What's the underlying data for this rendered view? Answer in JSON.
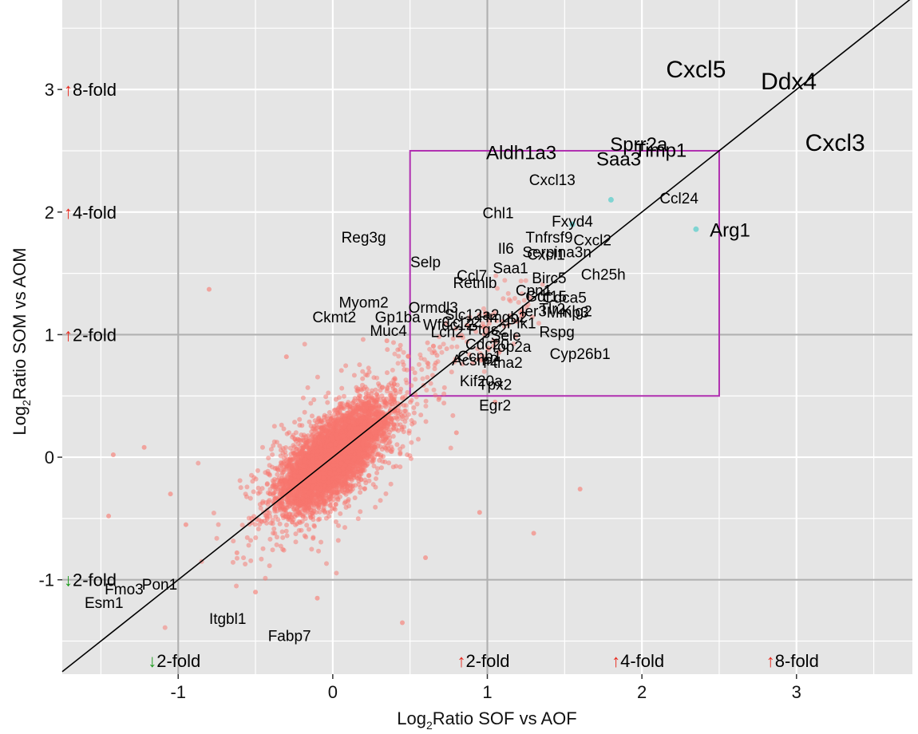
{
  "chart_data": {
    "type": "scatter",
    "title": "",
    "xlabel": {
      "prefix": "Log",
      "sub": "2",
      "suffix": "Ratio SOF vs AOF"
    },
    "ylabel": {
      "prefix": "Log",
      "sub": "2",
      "suffix": "Ratio SOM vs AOM"
    },
    "xlim": [
      -1.75,
      3.75
    ],
    "ylim": [
      -1.77,
      3.73
    ],
    "x_ticks": [
      -1,
      0,
      1,
      2,
      3
    ],
    "y_ticks": [
      -1,
      0,
      1,
      2,
      3
    ],
    "x_tick_labels": [
      "-1",
      "0",
      "1",
      "2",
      "3"
    ],
    "y_tick_labels": [
      "-1",
      "0",
      "1",
      "2",
      "3"
    ],
    "grid": true,
    "reference_line": {
      "slope": 1,
      "intercept": 0
    },
    "highlight_box": {
      "x": [
        0.5,
        2.5
      ],
      "y": [
        0.5,
        2.5
      ],
      "color": "#b02fb0"
    },
    "colors": {
      "background": "#e5e5e5",
      "grid_major": "#b0b0b0",
      "grid_minor": "#ffffff",
      "points": "#f8766d",
      "highlight_points": "#7fd4d2",
      "up_arrow": "#e8281c",
      "down_arrow": "#1a9a1a"
    },
    "fold_labels_y": [
      {
        "y": 3,
        "dir": "up",
        "text": "8-fold"
      },
      {
        "y": 2,
        "dir": "up",
        "text": "4-fold"
      },
      {
        "y": 1,
        "dir": "up",
        "text": "2-fold"
      },
      {
        "y": -1,
        "dir": "down",
        "text": "2-fold"
      }
    ],
    "fold_labels_x": [
      {
        "x": -1,
        "dir": "down",
        "text": "2-fold"
      },
      {
        "x": 1,
        "dir": "up",
        "text": "2-fold"
      },
      {
        "x": 2,
        "dir": "up",
        "text": "4-fold"
      },
      {
        "x": 3,
        "dir": "up",
        "text": "8-fold"
      }
    ],
    "gene_labels": [
      {
        "text": "Cxcl5",
        "x": 2.35,
        "y": 3.1,
        "size": "xl"
      },
      {
        "text": "Ddx4",
        "x": 2.95,
        "y": 3.0,
        "size": "xl"
      },
      {
        "text": "Cxcl3",
        "x": 3.25,
        "y": 2.5,
        "size": "xl"
      },
      {
        "text": "Aldh1a3",
        "x": 1.22,
        "y": 2.43,
        "size": "l"
      },
      {
        "text": "Saa3",
        "x": 1.85,
        "y": 2.38,
        "size": "l"
      },
      {
        "text": "Sprr2a",
        "x": 1.98,
        "y": 2.5,
        "size": "l"
      },
      {
        "text": "Timp1",
        "x": 2.12,
        "y": 2.45,
        "size": "l"
      },
      {
        "text": "Cxcl13",
        "x": 1.42,
        "y": 2.22,
        "size": "m"
      },
      {
        "text": "Ccl24",
        "x": 2.24,
        "y": 2.07,
        "size": "m"
      },
      {
        "text": "Chl1",
        "x": 1.07,
        "y": 1.95,
        "size": "m"
      },
      {
        "text": "Fxyd4",
        "x": 1.55,
        "y": 1.88,
        "size": "m"
      },
      {
        "text": "Arg1",
        "x": 2.57,
        "y": 1.8,
        "size": "l"
      },
      {
        "text": "Reg3g",
        "x": 0.2,
        "y": 1.75,
        "size": "m"
      },
      {
        "text": "Tnfrsf9",
        "x": 1.4,
        "y": 1.75,
        "size": "m"
      },
      {
        "text": "Cxcl2",
        "x": 1.68,
        "y": 1.73,
        "size": "m"
      },
      {
        "text": "Il6",
        "x": 1.12,
        "y": 1.66,
        "size": "m"
      },
      {
        "text": "Serpina3n",
        "x": 1.45,
        "y": 1.63,
        "size": "m"
      },
      {
        "text": "Cxcl1",
        "x": 1.38,
        "y": 1.61,
        "size": "m"
      },
      {
        "text": "Selp",
        "x": 0.6,
        "y": 1.55,
        "size": "m"
      },
      {
        "text": "Saa1",
        "x": 1.15,
        "y": 1.5,
        "size": "m"
      },
      {
        "text": "Birc5",
        "x": 1.4,
        "y": 1.42,
        "size": "m"
      },
      {
        "text": "Ch25h",
        "x": 1.75,
        "y": 1.45,
        "size": "m"
      },
      {
        "text": "Ccl7",
        "x": 0.9,
        "y": 1.44,
        "size": "m"
      },
      {
        "text": "Retnlb",
        "x": 0.92,
        "y": 1.38,
        "size": "m"
      },
      {
        "text": "Cpn1",
        "x": 1.3,
        "y": 1.32,
        "size": "m"
      },
      {
        "text": "Gdf15",
        "x": 1.38,
        "y": 1.27,
        "size": "m"
      },
      {
        "text": "Cdca5",
        "x": 1.5,
        "y": 1.26,
        "size": "m"
      },
      {
        "text": "Myom2",
        "x": 0.2,
        "y": 1.22,
        "size": "m"
      },
      {
        "text": "Ormdl3",
        "x": 0.65,
        "y": 1.18,
        "size": "m"
      },
      {
        "text": "Ier3",
        "x": 1.3,
        "y": 1.15,
        "size": "m"
      },
      {
        "text": "Tlr2",
        "x": 1.42,
        "y": 1.17,
        "size": "m"
      },
      {
        "text": "Mmp3",
        "x": 1.52,
        "y": 1.14,
        "size": "m"
      },
      {
        "text": "Slc12a2",
        "x": 0.9,
        "y": 1.12,
        "size": "m"
      },
      {
        "text": "Hmgb2",
        "x": 1.1,
        "y": 1.1,
        "size": "m"
      },
      {
        "text": "Klg2",
        "x": 1.58,
        "y": 1.15,
        "size": "m"
      },
      {
        "text": "Gp1ba",
        "x": 0.42,
        "y": 1.1,
        "size": "m"
      },
      {
        "text": "Ckmt2",
        "x": 0.01,
        "y": 1.1,
        "size": "m"
      },
      {
        "text": "Wfdc12",
        "x": 0.75,
        "y": 1.04,
        "size": "m"
      },
      {
        "text": "Ccl22",
        "x": 0.83,
        "y": 1.06,
        "size": "m"
      },
      {
        "text": "Plk1",
        "x": 1.22,
        "y": 1.05,
        "size": "m"
      },
      {
        "text": "Lcn2",
        "x": 0.74,
        "y": 0.98,
        "size": "m"
      },
      {
        "text": "Ptgs2",
        "x": 1.0,
        "y": 1.0,
        "size": "m"
      },
      {
        "text": "Muc4",
        "x": 0.36,
        "y": 0.99,
        "size": "m"
      },
      {
        "text": "Sele",
        "x": 1.12,
        "y": 0.95,
        "size": "m"
      },
      {
        "text": "Rspg",
        "x": 1.45,
        "y": 0.98,
        "size": "m"
      },
      {
        "text": "Cdc20",
        "x": 1.0,
        "y": 0.88,
        "size": "m"
      },
      {
        "text": "Top2a",
        "x": 1.15,
        "y": 0.86,
        "size": "m"
      },
      {
        "text": "Cyp26b1",
        "x": 1.6,
        "y": 0.8,
        "size": "m"
      },
      {
        "text": "Ccnb1",
        "x": 0.95,
        "y": 0.78,
        "size": "m"
      },
      {
        "text": "Acsm2",
        "x": 0.92,
        "y": 0.75,
        "size": "m"
      },
      {
        "text": "Ptha2",
        "x": 1.1,
        "y": 0.73,
        "size": "m"
      },
      {
        "text": "Kif20a",
        "x": 0.96,
        "y": 0.58,
        "size": "m"
      },
      {
        "text": "Tpx2",
        "x": 1.05,
        "y": 0.55,
        "size": "m"
      },
      {
        "text": "Egr2",
        "x": 1.05,
        "y": 0.38,
        "size": "m"
      },
      {
        "text": "Fmo3",
        "x": -1.35,
        "y": -1.12,
        "size": "m"
      },
      {
        "text": "Pon1",
        "x": -1.12,
        "y": -1.08,
        "size": "m"
      },
      {
        "text": "Esm1",
        "x": -1.48,
        "y": -1.23,
        "size": "m"
      },
      {
        "text": "Itgbl1",
        "x": -0.68,
        "y": -1.36,
        "size": "m"
      },
      {
        "text": "Fabp7",
        "x": -0.28,
        "y": -1.5,
        "size": "m"
      }
    ],
    "highlight_points": [
      {
        "x": 1.8,
        "y": 2.1
      },
      {
        "x": 2.35,
        "y": 1.86
      },
      {
        "x": 1.55,
        "y": 1.9
      }
    ],
    "cloud": {
      "n": 6000,
      "sd_x": 0.16,
      "sd_y": 0.2,
      "correlation": 0.7
    },
    "scattered_points": [
      {
        "x": -0.8,
        "y": 1.37
      },
      {
        "x": -1.42,
        "y": 0.02
      },
      {
        "x": -1.05,
        "y": -0.3
      },
      {
        "x": -1.45,
        "y": -0.48
      },
      {
        "x": -0.5,
        "y": -1.1
      },
      {
        "x": 1.6,
        "y": -0.26
      },
      {
        "x": 1.3,
        "y": -0.62
      },
      {
        "x": 0.45,
        "y": -1.35
      },
      {
        "x": -0.3,
        "y": 0.82
      },
      {
        "x": 0.8,
        "y": 0.2
      },
      {
        "x": 0.95,
        "y": -0.45
      },
      {
        "x": -0.62,
        "y": -0.78
      },
      {
        "x": -0.95,
        "y": -0.55
      },
      {
        "x": 0.35,
        "y": 0.95
      },
      {
        "x": 1.05,
        "y": 0.45
      },
      {
        "x": -0.1,
        "y": -1.15
      },
      {
        "x": -1.22,
        "y": 0.08
      },
      {
        "x": 0.6,
        "y": -0.82
      }
    ]
  }
}
